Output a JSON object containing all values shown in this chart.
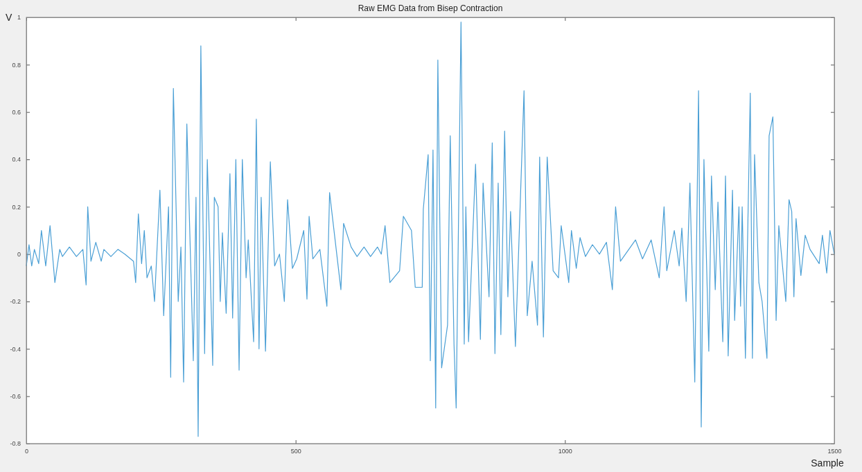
{
  "chart_data": {
    "type": "line",
    "title": "Raw EMG Data from Bisep Contraction",
    "xlabel": "Sample",
    "ylabel": "V",
    "xlim": [
      0,
      1500
    ],
    "xticks": [
      0,
      500,
      1000,
      1500
    ],
    "ylim": [
      -0.8,
      1
    ],
    "yticks": [
      -0.8,
      -0.6,
      -0.4,
      -0.2,
      0,
      0.2,
      0.4,
      0.6,
      0.8,
      1
    ],
    "grid": false,
    "marker": "none",
    "line_style": "solid",
    "series": [
      {
        "color": "#4a9fd5",
        "x": [
          0,
          5,
          10,
          15,
          23,
          28,
          36,
          44,
          53,
          62,
          67,
          80,
          93,
          105,
          111,
          114,
          120,
          129,
          139,
          144,
          157,
          170,
          183,
          199,
          203,
          208,
          214,
          219,
          224,
          232,
          238,
          242,
          248,
          255,
          264,
          268,
          273,
          282,
          287,
          292,
          298,
          310,
          315,
          319,
          324,
          331,
          336,
          346,
          349,
          356,
          360,
          364,
          371,
          378,
          383,
          389,
          395,
          401,
          408,
          412,
          422,
          427,
          432,
          436,
          444,
          453,
          461,
          470,
          479,
          485,
          494,
          502,
          515,
          521,
          525,
          532,
          545,
          558,
          563,
          584,
          589,
          603,
          614,
          627,
          639,
          652,
          659,
          666,
          675,
          693,
          700,
          715,
          722,
          735,
          737,
          746,
          750,
          755,
          760,
          764,
          771,
          782,
          787,
          794,
          798,
          807,
          813,
          816,
          821,
          834,
          843,
          848,
          859,
          865,
          870,
          876,
          881,
          888,
          894,
          899,
          908,
          924,
          930,
          939,
          949,
          953,
          960,
          967,
          978,
          988,
          993,
          1007,
          1012,
          1021,
          1028,
          1038,
          1051,
          1064,
          1077,
          1088,
          1094,
          1103,
          1131,
          1144,
          1160,
          1175,
          1184,
          1189,
          1203,
          1212,
          1217,
          1225,
          1232,
          1241,
          1248,
          1253,
          1258,
          1267,
          1272,
          1279,
          1284,
          1293,
          1298,
          1303,
          1311,
          1315,
          1323,
          1326,
          1329,
          1335,
          1344,
          1348,
          1352,
          1360,
          1366,
          1375,
          1379,
          1386,
          1392,
          1397,
          1410,
          1416,
          1421,
          1425,
          1429,
          1438,
          1446,
          1455,
          1472,
          1478,
          1486,
          1492,
          1500
        ],
        "values": [
          -0.05,
          0.04,
          -0.05,
          0.02,
          -0.04,
          0.1,
          -0.05,
          0.12,
          -0.12,
          0.02,
          -0.01,
          0.03,
          -0.01,
          0.02,
          -0.13,
          0.2,
          -0.03,
          0.05,
          -0.03,
          0.02,
          -0.01,
          0.02,
          0,
          -0.03,
          -0.12,
          0.17,
          -0.04,
          0.1,
          -0.1,
          -0.05,
          -0.2,
          -0.01,
          0.27,
          -0.26,
          0.2,
          -0.52,
          0.7,
          -0.2,
          0.03,
          -0.54,
          0.55,
          -0.45,
          0.24,
          -0.77,
          0.88,
          -0.42,
          0.4,
          -0.47,
          0.24,
          0.2,
          -0.2,
          0.09,
          -0.25,
          0.34,
          -0.27,
          0.4,
          -0.49,
          0.4,
          -0.1,
          0.06,
          -0.37,
          0.57,
          -0.4,
          0.24,
          -0.41,
          0.39,
          -0.05,
          0,
          -0.2,
          0.23,
          -0.06,
          -0.02,
          0.1,
          -0.19,
          0.16,
          -0.02,
          0.02,
          -0.22,
          0.26,
          -0.15,
          0.13,
          0.03,
          -0.01,
          0.03,
          -0.01,
          0.03,
          0,
          0.12,
          -0.12,
          -0.07,
          0.16,
          0.1,
          -0.14,
          -0.14,
          0.19,
          0.42,
          -0.45,
          0.44,
          -0.65,
          0.82,
          -0.48,
          -0.3,
          0.5,
          -0.38,
          -0.65,
          0.98,
          -0.38,
          0.2,
          -0.37,
          0.38,
          -0.36,
          0.3,
          -0.18,
          0.47,
          -0.42,
          0.3,
          -0.34,
          0.52,
          -0.18,
          0.18,
          -0.39,
          0.69,
          -0.26,
          -0.03,
          -0.3,
          0.41,
          -0.35,
          0.41,
          -0.07,
          -0.1,
          0.12,
          -0.12,
          0.1,
          -0.06,
          0.07,
          -0.01,
          0.04,
          0,
          0.05,
          -0.15,
          0.2,
          -0.03,
          0.06,
          -0.02,
          0.06,
          -0.1,
          0.2,
          -0.07,
          0.1,
          -0.05,
          0.11,
          -0.2,
          0.3,
          -0.54,
          0.69,
          -0.73,
          0.4,
          -0.41,
          0.33,
          -0.15,
          0.22,
          -0.37,
          0.33,
          -0.43,
          0.27,
          -0.28,
          0.2,
          -0.22,
          0.2,
          -0.44,
          0.68,
          -0.44,
          0.42,
          -0.12,
          -0.2,
          -0.44,
          0.5,
          0.58,
          -0.28,
          0.12,
          -0.2,
          0.23,
          0.18,
          -0.18,
          0.15,
          -0.09,
          0.08,
          0.02,
          -0.04,
          0.08,
          -0.08,
          0.1,
          0
        ]
      }
    ]
  }
}
